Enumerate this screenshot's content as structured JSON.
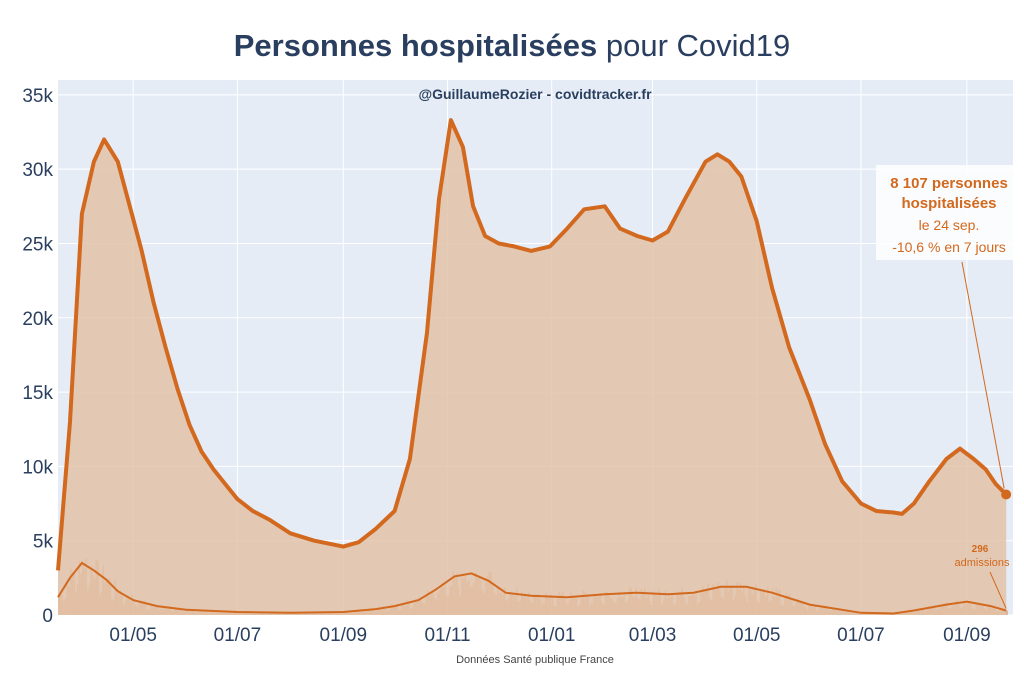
{
  "chart_data": {
    "type": "area",
    "title_bold": "Personnes hospitalisées",
    "title_rest": " pour Covid19",
    "subtitle": "@GuillaumeRozier - covidtracker.fr",
    "source": "Données Santé publique France",
    "ylim": [
      0,
      36000
    ],
    "yticks": [
      0,
      5000,
      10000,
      15000,
      20000,
      25000,
      30000,
      35000
    ],
    "ytick_labels": [
      "0",
      "5k",
      "10k",
      "15k",
      "20k",
      "25k",
      "30k",
      "35k"
    ],
    "xlim": [
      "2020-03-18",
      "2021-09-28"
    ],
    "xticks": [
      "2020-05-01",
      "2020-07-01",
      "2020-09-01",
      "2020-11-01",
      "2021-01-01",
      "2021-03-01",
      "2021-05-01",
      "2021-07-01",
      "2021-09-01"
    ],
    "xtick_labels": [
      "01/05",
      "01/07",
      "01/09",
      "01/11",
      "01/01",
      "01/03",
      "01/05",
      "01/07",
      "01/09"
    ],
    "grid": true,
    "colors": {
      "main_line": "#d2691e",
      "main_fill": "#e3c3a8",
      "admissions": "#d2691e",
      "plot_bg": "#e5ecf6",
      "title": "#2a3f5f"
    },
    "series": [
      {
        "name": "Personnes hospitalisées",
        "x": [
          "2020-03-18",
          "2020-03-25",
          "2020-04-01",
          "2020-04-08",
          "2020-04-14",
          "2020-04-22",
          "2020-04-29",
          "2020-05-06",
          "2020-05-13",
          "2020-05-20",
          "2020-05-27",
          "2020-06-03",
          "2020-06-10",
          "2020-06-17",
          "2020-06-24",
          "2020-07-01",
          "2020-07-10",
          "2020-07-20",
          "2020-08-01",
          "2020-08-15",
          "2020-09-01",
          "2020-09-10",
          "2020-09-20",
          "2020-10-01",
          "2020-10-10",
          "2020-10-20",
          "2020-10-27",
          "2020-11-03",
          "2020-11-10",
          "2020-11-16",
          "2020-11-23",
          "2020-12-01",
          "2020-12-10",
          "2020-12-20",
          "2020-12-31",
          "2021-01-10",
          "2021-01-20",
          "2021-02-01",
          "2021-02-10",
          "2021-02-20",
          "2021-03-01",
          "2021-03-10",
          "2021-03-20",
          "2021-04-01",
          "2021-04-08",
          "2021-04-15",
          "2021-04-22",
          "2021-05-01",
          "2021-05-10",
          "2021-05-20",
          "2021-06-01",
          "2021-06-10",
          "2021-06-20",
          "2021-07-01",
          "2021-07-10",
          "2021-07-20",
          "2021-07-25",
          "2021-08-01",
          "2021-08-10",
          "2021-08-20",
          "2021-08-28",
          "2021-09-05",
          "2021-09-12",
          "2021-09-18",
          "2021-09-24"
        ],
        "values": [
          3000,
          13000,
          27000,
          30500,
          32000,
          30500,
          27500,
          24500,
          21000,
          18000,
          15200,
          12800,
          11000,
          9800,
          8800,
          7800,
          7000,
          6400,
          5500,
          5000,
          4600,
          4900,
          5800,
          7000,
          10500,
          19000,
          28000,
          33300,
          31500,
          27500,
          25500,
          25000,
          24800,
          24500,
          24800,
          26000,
          27300,
          27500,
          26000,
          25500,
          25200,
          25800,
          28000,
          30500,
          31000,
          30500,
          29500,
          26500,
          22000,
          18000,
          14500,
          11500,
          9000,
          7500,
          7000,
          6900,
          6800,
          7500,
          9000,
          10500,
          11200,
          10500,
          9800,
          8800,
          8107
        ]
      },
      {
        "name": "admissions",
        "x": [
          "2020-03-18",
          "2020-03-25",
          "2020-04-01",
          "2020-04-08",
          "2020-04-15",
          "2020-04-22",
          "2020-05-01",
          "2020-05-15",
          "2020-06-01",
          "2020-07-01",
          "2020-08-01",
          "2020-09-01",
          "2020-09-20",
          "2020-10-01",
          "2020-10-15",
          "2020-10-25",
          "2020-11-05",
          "2020-11-15",
          "2020-11-25",
          "2020-12-05",
          "2020-12-20",
          "2021-01-10",
          "2021-02-01",
          "2021-02-20",
          "2021-03-10",
          "2021-03-25",
          "2021-04-10",
          "2021-04-25",
          "2021-05-10",
          "2021-06-01",
          "2021-07-01",
          "2021-07-20",
          "2021-08-01",
          "2021-08-20",
          "2021-09-01",
          "2021-09-15",
          "2021-09-24"
        ],
        "values": [
          1200,
          2500,
          3500,
          3000,
          2400,
          1600,
          1000,
          600,
          350,
          200,
          150,
          200,
          400,
          600,
          1000,
          1700,
          2600,
          2800,
          2300,
          1500,
          1300,
          1200,
          1400,
          1500,
          1400,
          1500,
          1900,
          1900,
          1500,
          700,
          150,
          100,
          300,
          700,
          900,
          600,
          296
        ]
      }
    ],
    "annotation": {
      "line1": "8 107 personnes",
      "line2": "hospitalisées",
      "line3": "le 24 sep.",
      "line4": "-10,6 % en 7 jours"
    },
    "admissions_annotation": {
      "value": "296",
      "label": "admissions"
    }
  }
}
